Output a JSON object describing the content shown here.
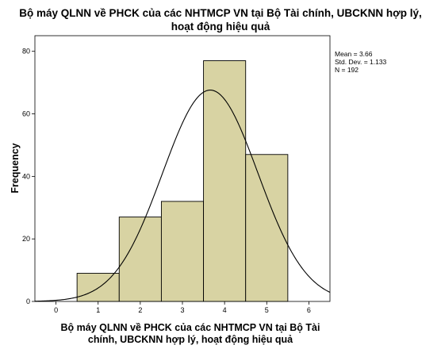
{
  "chart_data": {
    "type": "histogram",
    "title": "Bộ máy QLNN về PHCK của các NHTMCP VN tại Bộ Tài chính, UBCKNN hợp lý, hoạt động hiệu quả",
    "title_line1": "Bộ máy QLNN về PHCK của các NHTMCP VN tại Bộ Tài chính, UBCKNN hợp lý,",
    "title_line2": "hoạt động hiệu quả",
    "xlabel": "Bộ máy QLNN về PHCK của các NHTMCP VN tại Bộ Tài chính, UBCKNN hợp lý, hoạt động hiệu quả",
    "xlabel_line1": "Bộ máy QLNN về PHCK của các NHTMCP VN tại Bộ Tài",
    "xlabel_line2": "chính, UBCKNN hợp lý, hoạt động hiệu quả",
    "ylabel": "Frequency",
    "bins": [
      {
        "x": 1,
        "from": 0.5,
        "to": 1.5,
        "value": 9
      },
      {
        "x": 2,
        "from": 1.5,
        "to": 2.5,
        "value": 27
      },
      {
        "x": 3,
        "from": 2.5,
        "to": 3.5,
        "value": 32
      },
      {
        "x": 4,
        "from": 3.5,
        "to": 4.5,
        "value": 77
      },
      {
        "x": 5,
        "from": 4.5,
        "to": 5.5,
        "value": 47
      }
    ],
    "xlim": [
      -0.5,
      6.5
    ],
    "ylim": [
      0,
      85
    ],
    "x_ticks": [
      "0",
      "1",
      "2",
      "3",
      "4",
      "5",
      "6"
    ],
    "y_ticks": [
      "0",
      "20",
      "40",
      "60",
      "80"
    ],
    "normal_curve": {
      "mean": 3.66,
      "std": 1.133,
      "n": 192,
      "bin_width": 1
    },
    "stats": {
      "mean": "Mean = 3.66",
      "std": "Std. Dev. = 1.133",
      "n": "N = 192"
    },
    "colors": {
      "bar_fill": "#d8d3a3",
      "bar_stroke": "#000000",
      "curve": "#000000"
    }
  }
}
